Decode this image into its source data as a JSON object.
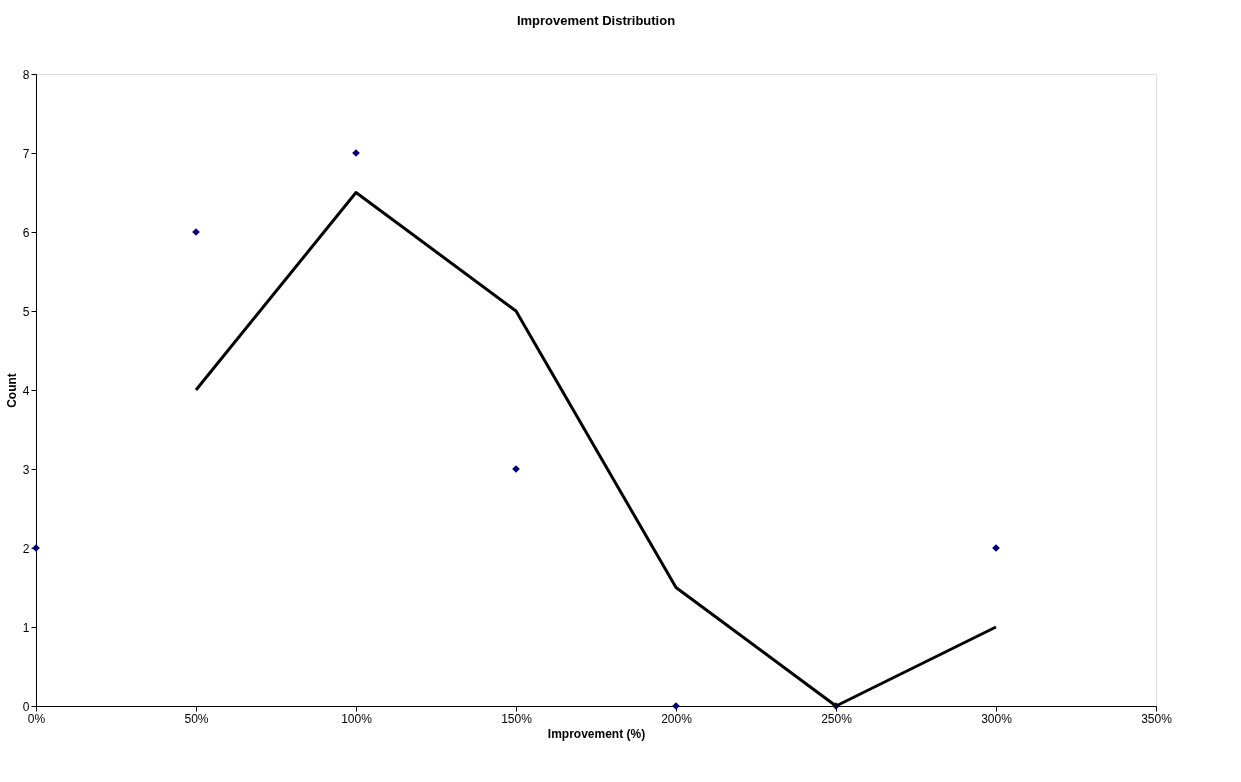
{
  "chart_data": {
    "type": "scatter",
    "title": "Improvement Distribution",
    "xlabel": "Improvement (%)",
    "ylabel": "Count",
    "xlim": [
      0,
      350
    ],
    "xticks": [
      {
        "value": 0,
        "label": "0%"
      },
      {
        "value": 50,
        "label": "50%"
      },
      {
        "value": 100,
        "label": "100%"
      },
      {
        "value": 150,
        "label": "150%"
      },
      {
        "value": 200,
        "label": "200%"
      },
      {
        "value": 250,
        "label": "250%"
      },
      {
        "value": 300,
        "label": "300%"
      },
      {
        "value": 350,
        "label": "350%"
      }
    ],
    "ylim": [
      0,
      8
    ],
    "yticks": [
      0,
      1,
      2,
      3,
      4,
      5,
      6,
      7,
      8
    ],
    "grid": false,
    "series": [
      {
        "type": "scatter",
        "marker": "diamond",
        "color": "#000080",
        "x": [
          0,
          50,
          100,
          150,
          200,
          250,
          300
        ],
        "values": [
          2,
          6,
          7,
          3,
          0,
          0,
          2
        ]
      },
      {
        "type": "line",
        "marker": "none",
        "line_style": "solid",
        "color": "#000000",
        "x": [
          50,
          100,
          150,
          200,
          250,
          300
        ],
        "values": [
          4,
          6.5,
          5,
          1.5,
          0,
          1
        ]
      }
    ]
  }
}
